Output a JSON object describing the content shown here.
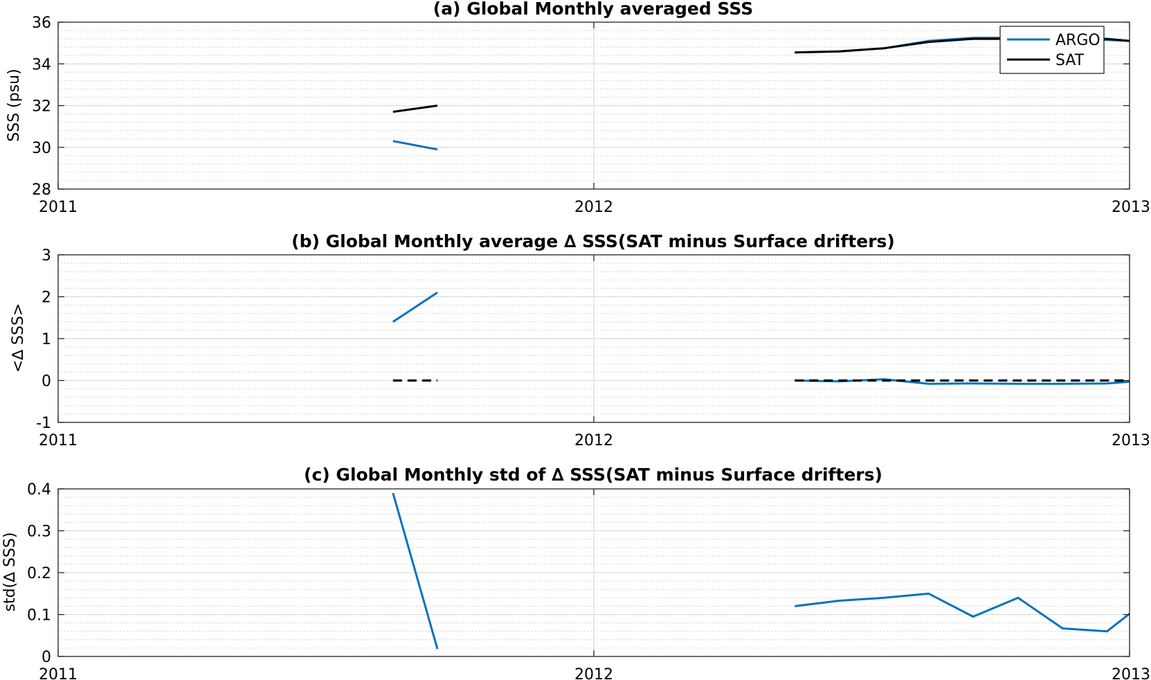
{
  "chart_data": [
    {
      "type": "line",
      "title": "(a) Global Monthly averaged SSS",
      "xlabel": "",
      "ylabel": "SSS (psu)",
      "xlim": [
        2011,
        2013
      ],
      "ylim": [
        28,
        36
      ],
      "xticks": [
        2011,
        2012,
        2013
      ],
      "xtick_labels": [
        "2011",
        "2012",
        "2013"
      ],
      "yticks": [
        28,
        30,
        32,
        34,
        36
      ],
      "ytick_labels": [
        "28",
        "30",
        "32",
        "34",
        "36"
      ],
      "grid": true,
      "minor_grid": true,
      "legend": "top-right",
      "series": [
        {
          "name": "ARGO",
          "color": "#0072bd",
          "style": "solid",
          "segments": [
            [
              [
                2011.625,
                30.3
              ],
              [
                2011.708,
                29.9
              ]
            ],
            [
              [
                2012.375,
                34.55
              ],
              [
                2012.458,
                34.6
              ],
              [
                2012.542,
                34.75
              ],
              [
                2012.625,
                35.1
              ],
              [
                2012.708,
                35.25
              ],
              [
                2012.792,
                35.25
              ],
              [
                2012.875,
                35.2
              ],
              [
                2012.958,
                35.15
              ],
              [
                2013.0,
                35.1
              ]
            ]
          ]
        },
        {
          "name": "SAT",
          "color": "#000000",
          "style": "solid",
          "segments": [
            [
              [
                2011.625,
                31.7
              ],
              [
                2011.708,
                32.0
              ]
            ],
            [
              [
                2012.375,
                34.55
              ],
              [
                2012.458,
                34.6
              ],
              [
                2012.542,
                34.75
              ],
              [
                2012.625,
                35.05
              ],
              [
                2012.708,
                35.2
              ],
              [
                2012.792,
                35.2
              ],
              [
                2012.875,
                35.2
              ],
              [
                2012.958,
                35.2
              ],
              [
                2013.0,
                35.1
              ]
            ]
          ]
        }
      ]
    },
    {
      "type": "line",
      "title": "(b) Global Monthly average ∆ SSS(SAT minus Surface drifters)",
      "xlabel": "",
      "ylabel": "<∆ SSS>",
      "xlim": [
        2011,
        2013
      ],
      "ylim": [
        -1,
        3
      ],
      "xticks": [
        2011,
        2012,
        2013
      ],
      "xtick_labels": [
        "2011",
        "2012",
        "2013"
      ],
      "yticks": [
        -1,
        0,
        1,
        2,
        3
      ],
      "ytick_labels": [
        "-1",
        "0",
        "1",
        "2",
        "3"
      ],
      "grid": true,
      "minor_grid": true,
      "series": [
        {
          "color": "#0072bd",
          "style": "solid",
          "segments": [
            [
              [
                2011.625,
                1.4
              ],
              [
                2011.708,
                2.1
              ]
            ],
            [
              [
                2012.375,
                0.0
              ],
              [
                2012.458,
                -0.02
              ],
              [
                2012.542,
                0.03
              ],
              [
                2012.625,
                -0.08
              ],
              [
                2012.708,
                -0.07
              ],
              [
                2012.792,
                -0.08
              ],
              [
                2012.875,
                -0.08
              ],
              [
                2012.958,
                -0.07
              ],
              [
                2013.0,
                -0.03
              ]
            ]
          ]
        },
        {
          "color": "#000000",
          "style": "dashed",
          "segments": [
            [
              [
                2011.625,
                0.0
              ],
              [
                2011.708,
                0.0
              ]
            ],
            [
              [
                2012.375,
                0.0
              ],
              [
                2013.0,
                0.0
              ]
            ]
          ]
        }
      ]
    },
    {
      "type": "line",
      "title": "(c) Global Monthly std of ∆ SSS(SAT minus Surface drifters)",
      "xlabel": "",
      "ylabel": "std(∆ SSS)",
      "xlim": [
        2011,
        2013
      ],
      "ylim": [
        0,
        0.4
      ],
      "xticks": [
        2011,
        2012,
        2013
      ],
      "xtick_labels": [
        "2011",
        "2012",
        "2013"
      ],
      "yticks": [
        0,
        0.1,
        0.2,
        0.3,
        0.4
      ],
      "ytick_labels": [
        "0",
        "0.1",
        "0.2",
        "0.3",
        "0.4"
      ],
      "grid": true,
      "minor_grid": true,
      "series": [
        {
          "color": "#0072bd",
          "style": "solid",
          "segments": [
            [
              [
                2011.625,
                0.39
              ],
              [
                2011.708,
                0.018
              ]
            ],
            [
              [
                2012.375,
                0.12
              ],
              [
                2012.458,
                0.133
              ],
              [
                2012.542,
                0.14
              ],
              [
                2012.625,
                0.15
              ],
              [
                2012.708,
                0.095
              ],
              [
                2012.792,
                0.14
              ],
              [
                2012.875,
                0.067
              ],
              [
                2012.958,
                0.06
              ],
              [
                2013.0,
                0.102
              ]
            ]
          ]
        }
      ]
    }
  ]
}
